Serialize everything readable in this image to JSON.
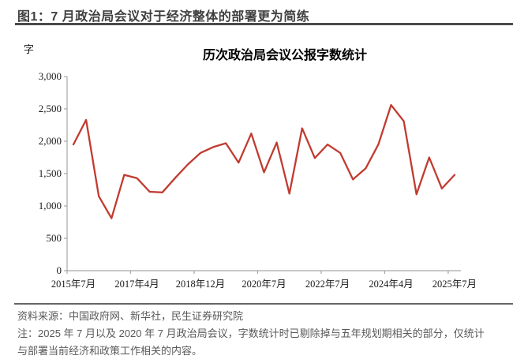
{
  "figure": {
    "header_title": "图1：7 月政治局会议对于经济整体的部署更为简练",
    "unit_label": "字",
    "chart_title": "历次政治局会议公报字数统计"
  },
  "chart_data": {
    "type": "line",
    "title": "历次政治局会议公报字数统计",
    "y_unit": "字",
    "x_tick_labels": [
      "2015年7月",
      "2017年4月",
      "2018年12月",
      "2020年7月",
      "2022年7月",
      "2024年4月",
      "2025年7月"
    ],
    "label_every": 5,
    "values": [
      1950,
      2330,
      1150,
      810,
      1480,
      1430,
      1220,
      1210,
      1430,
      1640,
      1820,
      1910,
      1970,
      1670,
      2120,
      1520,
      1980,
      1190,
      2200,
      1740,
      1950,
      1820,
      1410,
      1580,
      1950,
      2560,
      2310,
      1180,
      1750,
      1270,
      1480
    ],
    "y_ticks": [
      0,
      500,
      1000,
      1500,
      2000,
      2500,
      3000
    ],
    "y_tick_labels": [
      "0",
      "500",
      "1,000",
      "1,500",
      "2,000",
      "2,500",
      "3,000"
    ],
    "ylim": [
      0,
      3000
    ],
    "grid": false,
    "legend": "none",
    "line_color": "#C13B30",
    "axis_color": "#A6A6A6"
  },
  "footer": {
    "source": "资料来源：中国政府网、新华社，民生证券研究院",
    "note_line1": "注：2025 年 7 月以及 2020 年 7 月政治局会议，字数统计时已剔除掉与五年规划期相关的部分，仅统计",
    "note_line2": "与部署当前经济和政策工作相关的内容。"
  },
  "colors": {
    "header_text": "#3F3F3F",
    "header_rule": "#4A4A4A",
    "footer_rule": "#666666",
    "footer_text": "#595959"
  }
}
